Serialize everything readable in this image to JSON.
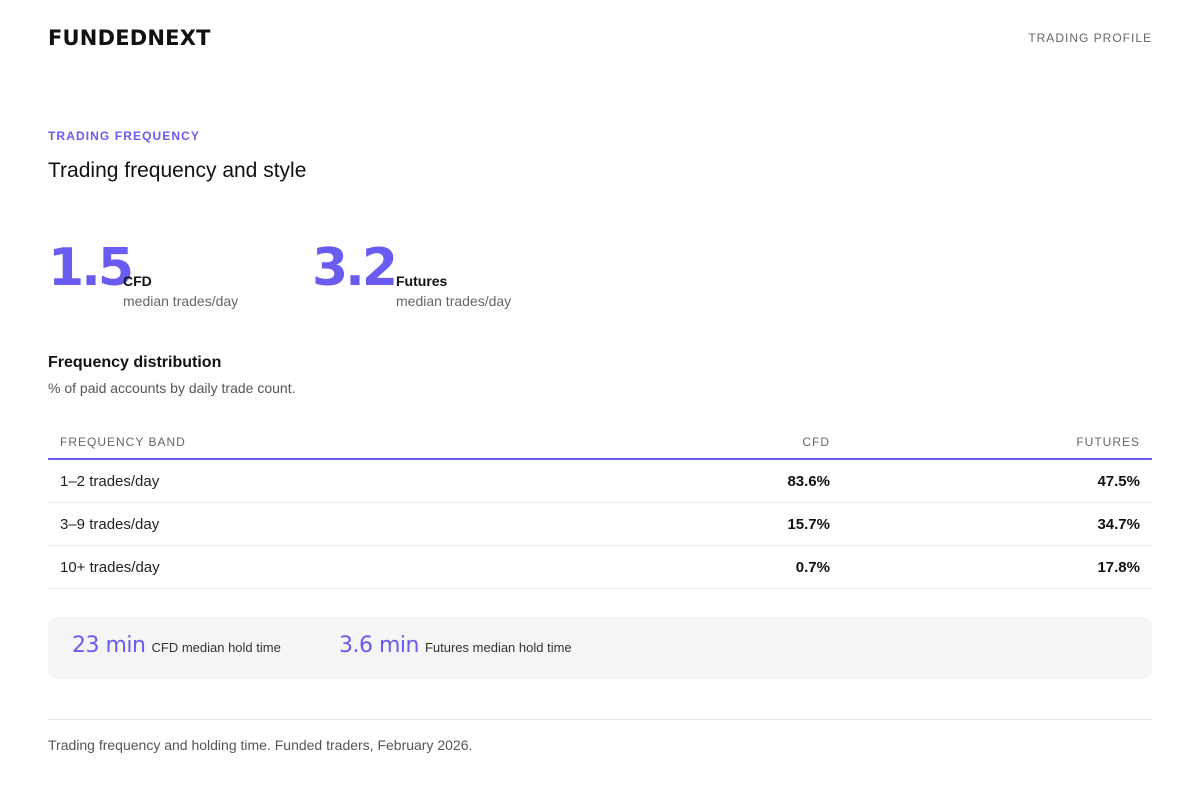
{
  "header": {
    "logo_text": "FUNDEDNEXT",
    "page_label": "TRADING PROFILE"
  },
  "section": {
    "eyebrow": "TRADING FREQUENCY",
    "title": "Trading frequency and style"
  },
  "stats": [
    {
      "value": "1.5",
      "name": "CFD",
      "sub": "median trades/day"
    },
    {
      "value": "3.2",
      "name": "Futures",
      "sub": "median trades/day"
    }
  ],
  "distribution": {
    "title": "Frequency distribution",
    "subtitle": "% of paid accounts by daily trade count.",
    "columns": [
      "FREQUENCY BAND",
      "CFD",
      "FUTURES"
    ],
    "rows": [
      {
        "band": "1–2 trades/day",
        "cfd": "83.6%",
        "futures": "47.5%"
      },
      {
        "band": "3–9 trades/day",
        "cfd": "15.7%",
        "futures": "34.7%"
      },
      {
        "band": "10+ trades/day",
        "cfd": "0.7%",
        "futures": "17.8%"
      }
    ]
  },
  "hold_times": [
    {
      "value": "23 min",
      "label": "CFD median hold time"
    },
    {
      "value": "3.6 min",
      "label": "Futures median hold time"
    }
  ],
  "footnote": "Trading frequency and holding time. Funded traders, February 2026.",
  "colors": {
    "accent": "#6a5cf0",
    "text": "#111111",
    "muted": "#666666",
    "panel": "#f5f5f5"
  }
}
